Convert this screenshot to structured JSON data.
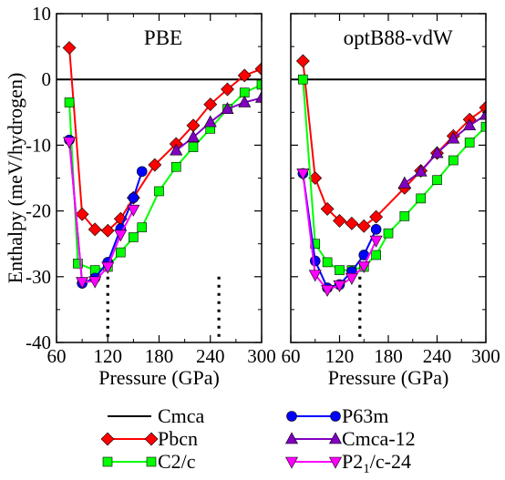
{
  "chart_data": [
    {
      "type": "line",
      "title": "PBE",
      "xlabel": "Pressure (GPa)",
      "ylabel": "Enthalpy (meV/hydrogen)",
      "xlim": [
        60,
        300
      ],
      "ylim": [
        -40,
        10
      ],
      "xticks": [
        60,
        120,
        180,
        240,
        300
      ],
      "yticks": [
        10,
        0,
        -10,
        -20,
        -30,
        -40
      ],
      "vlines": [
        120,
        250
      ],
      "series": [
        {
          "name": "Cmca",
          "color": "#000000",
          "marker": "none",
          "x": [
            60,
            300
          ],
          "y": [
            0,
            0
          ]
        },
        {
          "name": "Pbcn",
          "color": "#ff0000",
          "marker": "diamond",
          "x": [
            75,
            90,
            105,
            120,
            135,
            150,
            175,
            200,
            220,
            240,
            260,
            280,
            300
          ],
          "y": [
            4.8,
            -20.5,
            -22.8,
            -23.0,
            -21.2,
            -18.0,
            -13.0,
            -9.8,
            -7.0,
            -3.8,
            -1.5,
            0.6,
            1.6
          ]
        },
        {
          "name": "C2/c",
          "color": "#00ff00",
          "marker": "square",
          "x": [
            75,
            85,
            105,
            120,
            135,
            150,
            160,
            180,
            200,
            220,
            240,
            260,
            280,
            300
          ],
          "y": [
            -3.5,
            -28.0,
            -29.0,
            -28.5,
            -26.3,
            -24.0,
            -22.5,
            -17.0,
            -13.3,
            -10.3,
            -7.5,
            -4.5,
            -2.0,
            -0.8
          ]
        },
        {
          "name": "P63m",
          "color": "#0000ff",
          "marker": "circle",
          "x": [
            75,
            90,
            105,
            120,
            135,
            150,
            160
          ],
          "y": [
            -9.2,
            -31.0,
            -30.2,
            -27.8,
            -22.7,
            -18.0,
            -14.0
          ]
        },
        {
          "name": "Cmca-12",
          "color": "#8000c0",
          "marker": "triangle",
          "x": [
            200,
            220,
            240,
            260,
            280,
            300
          ],
          "y": [
            -10.8,
            -8.8,
            -6.5,
            -4.5,
            -3.5,
            -2.8
          ]
        },
        {
          "name": "P2_1/c-24",
          "color": "#ff00ff",
          "marker": "tri-down",
          "x": [
            75,
            90,
            105,
            120,
            135,
            150
          ],
          "y": [
            -9.5,
            -30.8,
            -30.7,
            -28.5,
            -23.6,
            -19.8
          ]
        }
      ]
    },
    {
      "type": "line",
      "title": "optB88-vdW",
      "xlabel": "Pressure (GPa)",
      "ylabel": "",
      "xlim": [
        60,
        300
      ],
      "ylim": [
        -40,
        10
      ],
      "xticks": [
        60,
        120,
        180,
        240,
        300
      ],
      "yticks": [
        10,
        0,
        -10,
        -20,
        -30,
        -40
      ],
      "vlines": [
        145
      ],
      "series": [
        {
          "name": "Cmca",
          "color": "#000000",
          "marker": "none",
          "x": [
            60,
            300
          ],
          "y": [
            0,
            0
          ]
        },
        {
          "name": "Pbcn",
          "color": "#ff0000",
          "marker": "diamond",
          "x": [
            75,
            90,
            105,
            120,
            135,
            150,
            165,
            200,
            220,
            240,
            260,
            280,
            300
          ],
          "y": [
            2.8,
            -15.0,
            -19.7,
            -21.5,
            -21.9,
            -22.3,
            -20.9,
            -16.5,
            -13.9,
            -11.2,
            -8.6,
            -6.1,
            -4.3
          ]
        },
        {
          "name": "C2/c",
          "color": "#00ff00",
          "marker": "square",
          "x": [
            75,
            90,
            105,
            120,
            135,
            150,
            165,
            180,
            200,
            220,
            240,
            260,
            280,
            300
          ],
          "y": [
            0.0,
            -25.0,
            -27.8,
            -29.0,
            -29.0,
            -28.5,
            -26.7,
            -23.4,
            -20.8,
            -18.1,
            -15.3,
            -12.3,
            -9.6,
            -7.2
          ]
        },
        {
          "name": "P63m",
          "color": "#0000ff",
          "marker": "circle",
          "x": [
            75,
            90,
            105,
            120,
            135,
            150,
            165
          ],
          "y": [
            -14.3,
            -27.6,
            -31.7,
            -31.2,
            -29.2,
            -26.7,
            -22.8
          ]
        },
        {
          "name": "Cmca-12",
          "color": "#8000c0",
          "marker": "triangle",
          "x": [
            200,
            220,
            240,
            260,
            280,
            300
          ],
          "y": [
            -15.8,
            -14.0,
            -11.2,
            -9.0,
            -7.0,
            -5.4
          ]
        },
        {
          "name": "P2_1/c-24",
          "color": "#ff00ff",
          "marker": "tri-down",
          "x": [
            75,
            90,
            105,
            120,
            135,
            150,
            165
          ],
          "y": [
            -14.3,
            -29.7,
            -32.0,
            -31.3,
            -30.2,
            -28.4,
            -24.5
          ]
        }
      ]
    }
  ],
  "legend": {
    "placement": "bottom",
    "entries": [
      {
        "name": "Cmca",
        "label_main": "Cmca",
        "label_sub": "",
        "label_tail": "",
        "color": "#000000",
        "marker": "none"
      },
      {
        "name": "Pbcn",
        "label_main": "Pbcn",
        "label_sub": "",
        "label_tail": "",
        "color": "#ff0000",
        "marker": "diamond"
      },
      {
        "name": "C2/c",
        "label_main": "C2/c",
        "label_sub": "",
        "label_tail": "",
        "color": "#00ff00",
        "marker": "square"
      },
      {
        "name": "P63m",
        "label_main": "P63m",
        "label_sub": "",
        "label_tail": "",
        "color": "#0000ff",
        "marker": "circle"
      },
      {
        "name": "Cmca-12",
        "label_main": "Cmca-12",
        "label_sub": "",
        "label_tail": "",
        "color": "#8000c0",
        "marker": "triangle"
      },
      {
        "name": "P2_1/c-24",
        "label_main": "P2",
        "label_sub": "1",
        "label_tail": "/c-24",
        "color": "#ff00ff",
        "marker": "tri-down"
      }
    ]
  }
}
